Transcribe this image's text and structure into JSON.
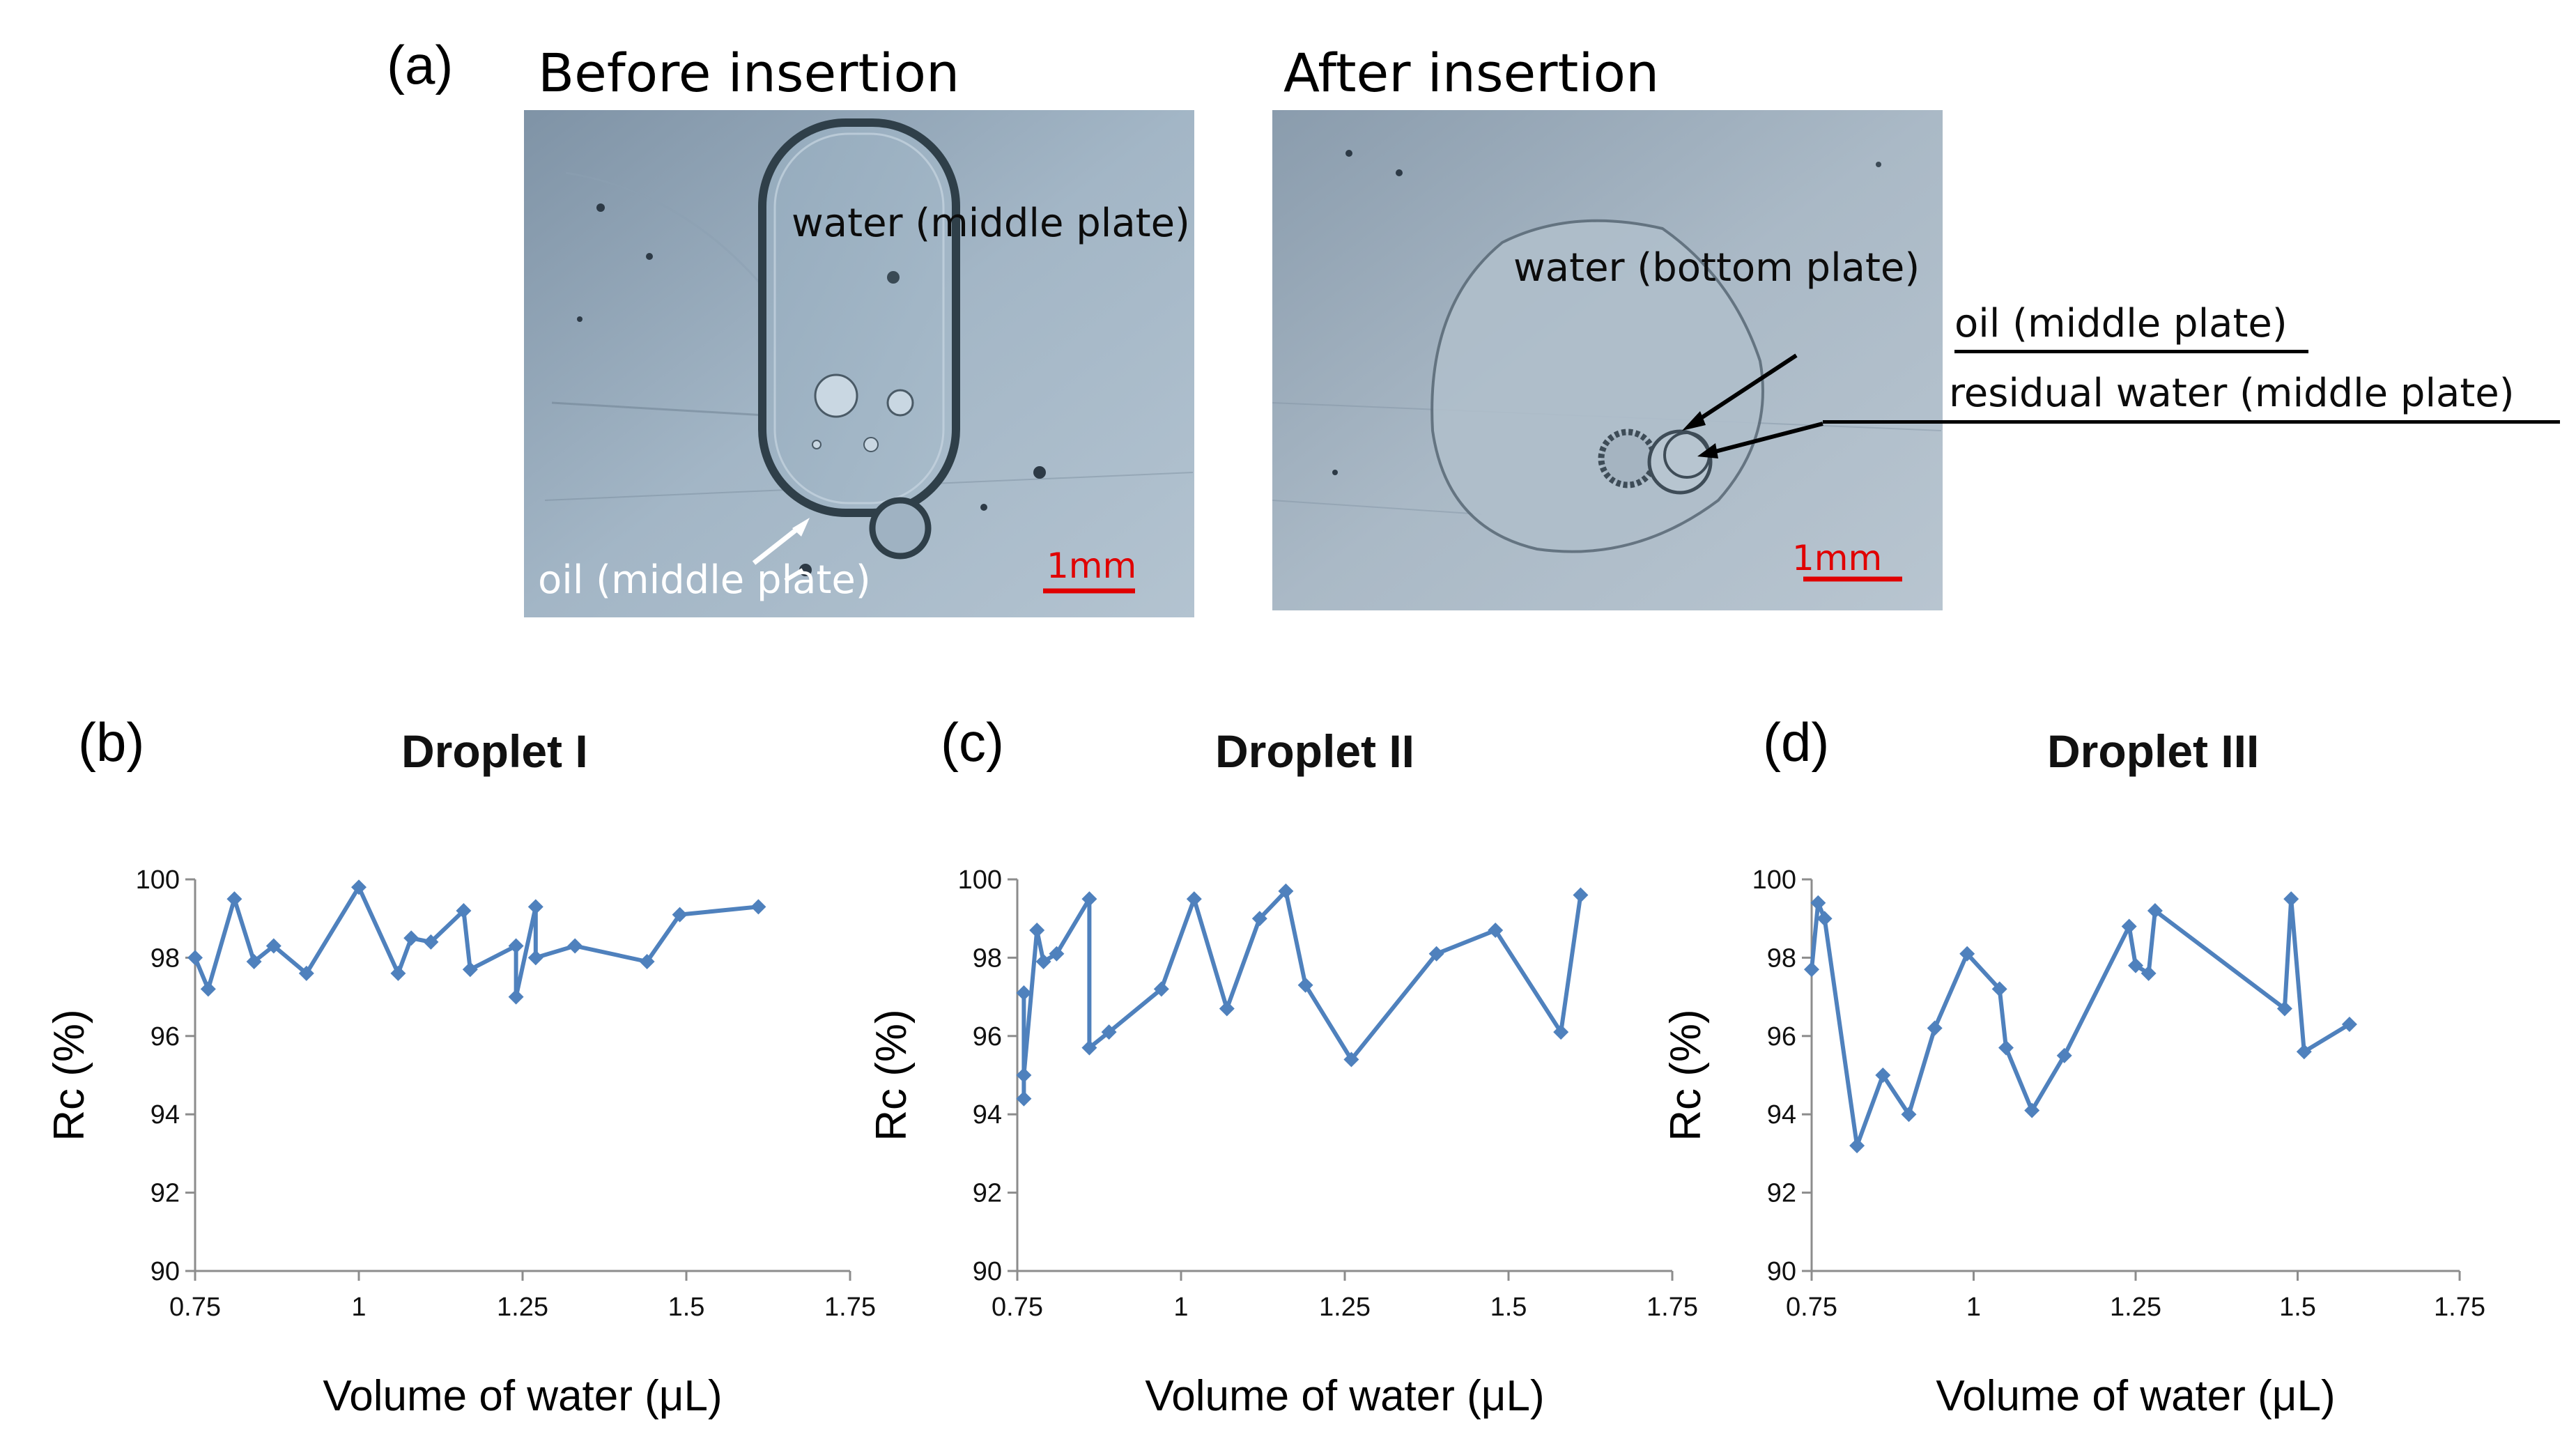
{
  "panel_a": {
    "label": "(a)",
    "before": {
      "title": "Before insertion",
      "labels": {
        "water": "water (middle plate)",
        "oil": "oil (middle plate)",
        "scale": "1mm"
      }
    },
    "after": {
      "title": "After insertion",
      "labels": {
        "water": "water (bottom plate)",
        "oil": "oil (middle plate)",
        "residual": "residual water (middle plate)",
        "scale": "1mm"
      }
    }
  },
  "colors": {
    "series": "#4F81BD",
    "scale_bar": "#e00000",
    "axis": "#8c8c8c"
  },
  "chart_data": [
    {
      "panel": "(b)",
      "type": "line",
      "title": "Droplet I",
      "xlabel": "Volume of water (μL)",
      "ylabel": "Rc (%)",
      "xlim": [
        0.75,
        1.75
      ],
      "ylim": [
        90,
        100
      ],
      "xticks": [
        0.75,
        1,
        1.25,
        1.5,
        1.75
      ],
      "xtick_labels": [
        "0.75",
        "1",
        "1.25",
        "1.5",
        "1.75"
      ],
      "yticks": [
        90,
        92,
        94,
        96,
        98,
        100
      ],
      "series": [
        {
          "name": "Droplet I",
          "x": [
            0.75,
            0.77,
            0.81,
            0.84,
            0.87,
            0.92,
            1.0,
            1.06,
            1.08,
            1.11,
            1.16,
            1.17,
            1.24,
            1.24,
            1.27,
            1.27,
            1.33,
            1.44,
            1.49,
            1.61
          ],
          "y": [
            98.0,
            97.2,
            99.5,
            97.9,
            98.3,
            97.6,
            99.8,
            97.6,
            98.5,
            98.4,
            99.2,
            97.7,
            98.3,
            97.0,
            99.3,
            98.0,
            98.3,
            97.9,
            99.1,
            99.3
          ]
        }
      ]
    },
    {
      "panel": "(c)",
      "type": "line",
      "title": "Droplet II",
      "xlabel": "Volume of water (μL)",
      "ylabel": "Rc (%)",
      "xlim": [
        0.75,
        1.75
      ],
      "ylim": [
        90,
        100
      ],
      "xticks": [
        0.75,
        1,
        1.25,
        1.5,
        1.75
      ],
      "xtick_labels": [
        "0.75",
        "1",
        "1.25",
        "1.5",
        "1.75"
      ],
      "yticks": [
        90,
        92,
        94,
        96,
        98,
        100
      ],
      "series": [
        {
          "name": "Droplet II",
          "x": [
            0.76,
            0.76,
            0.76,
            0.78,
            0.79,
            0.81,
            0.86,
            0.86,
            0.89,
            0.97,
            1.02,
            1.07,
            1.12,
            1.16,
            1.19,
            1.26,
            1.39,
            1.48,
            1.58,
            1.61
          ],
          "y": [
            97.1,
            94.4,
            95.0,
            98.7,
            97.9,
            98.1,
            99.5,
            95.7,
            96.1,
            97.2,
            99.5,
            96.7,
            99.0,
            99.7,
            97.3,
            95.4,
            98.1,
            98.7,
            96.1,
            99.6
          ]
        }
      ]
    },
    {
      "panel": "(d)",
      "type": "line",
      "title": "Droplet III",
      "xlabel": "Volume of water (μL)",
      "ylabel": "Rc (%)",
      "xlim": [
        0.75,
        1.75
      ],
      "ylim": [
        90,
        100
      ],
      "xticks": [
        0.75,
        1,
        1.25,
        1.5,
        1.75
      ],
      "xtick_labels": [
        "0.75",
        "1",
        "1.25",
        "1.5",
        "1.75"
      ],
      "yticks": [
        90,
        92,
        94,
        96,
        98,
        100
      ],
      "series": [
        {
          "name": "Droplet III",
          "x": [
            0.75,
            0.76,
            0.77,
            0.82,
            0.86,
            0.9,
            0.94,
            0.99,
            1.04,
            1.05,
            1.09,
            1.14,
            1.24,
            1.25,
            1.27,
            1.28,
            1.48,
            1.49,
            1.51,
            1.58
          ],
          "y": [
            97.7,
            99.4,
            99.0,
            93.2,
            95.0,
            94.0,
            96.2,
            98.1,
            97.2,
            95.7,
            94.1,
            95.5,
            98.8,
            97.8,
            97.6,
            99.2,
            96.7,
            99.5,
            95.6,
            96.3
          ]
        }
      ]
    }
  ]
}
